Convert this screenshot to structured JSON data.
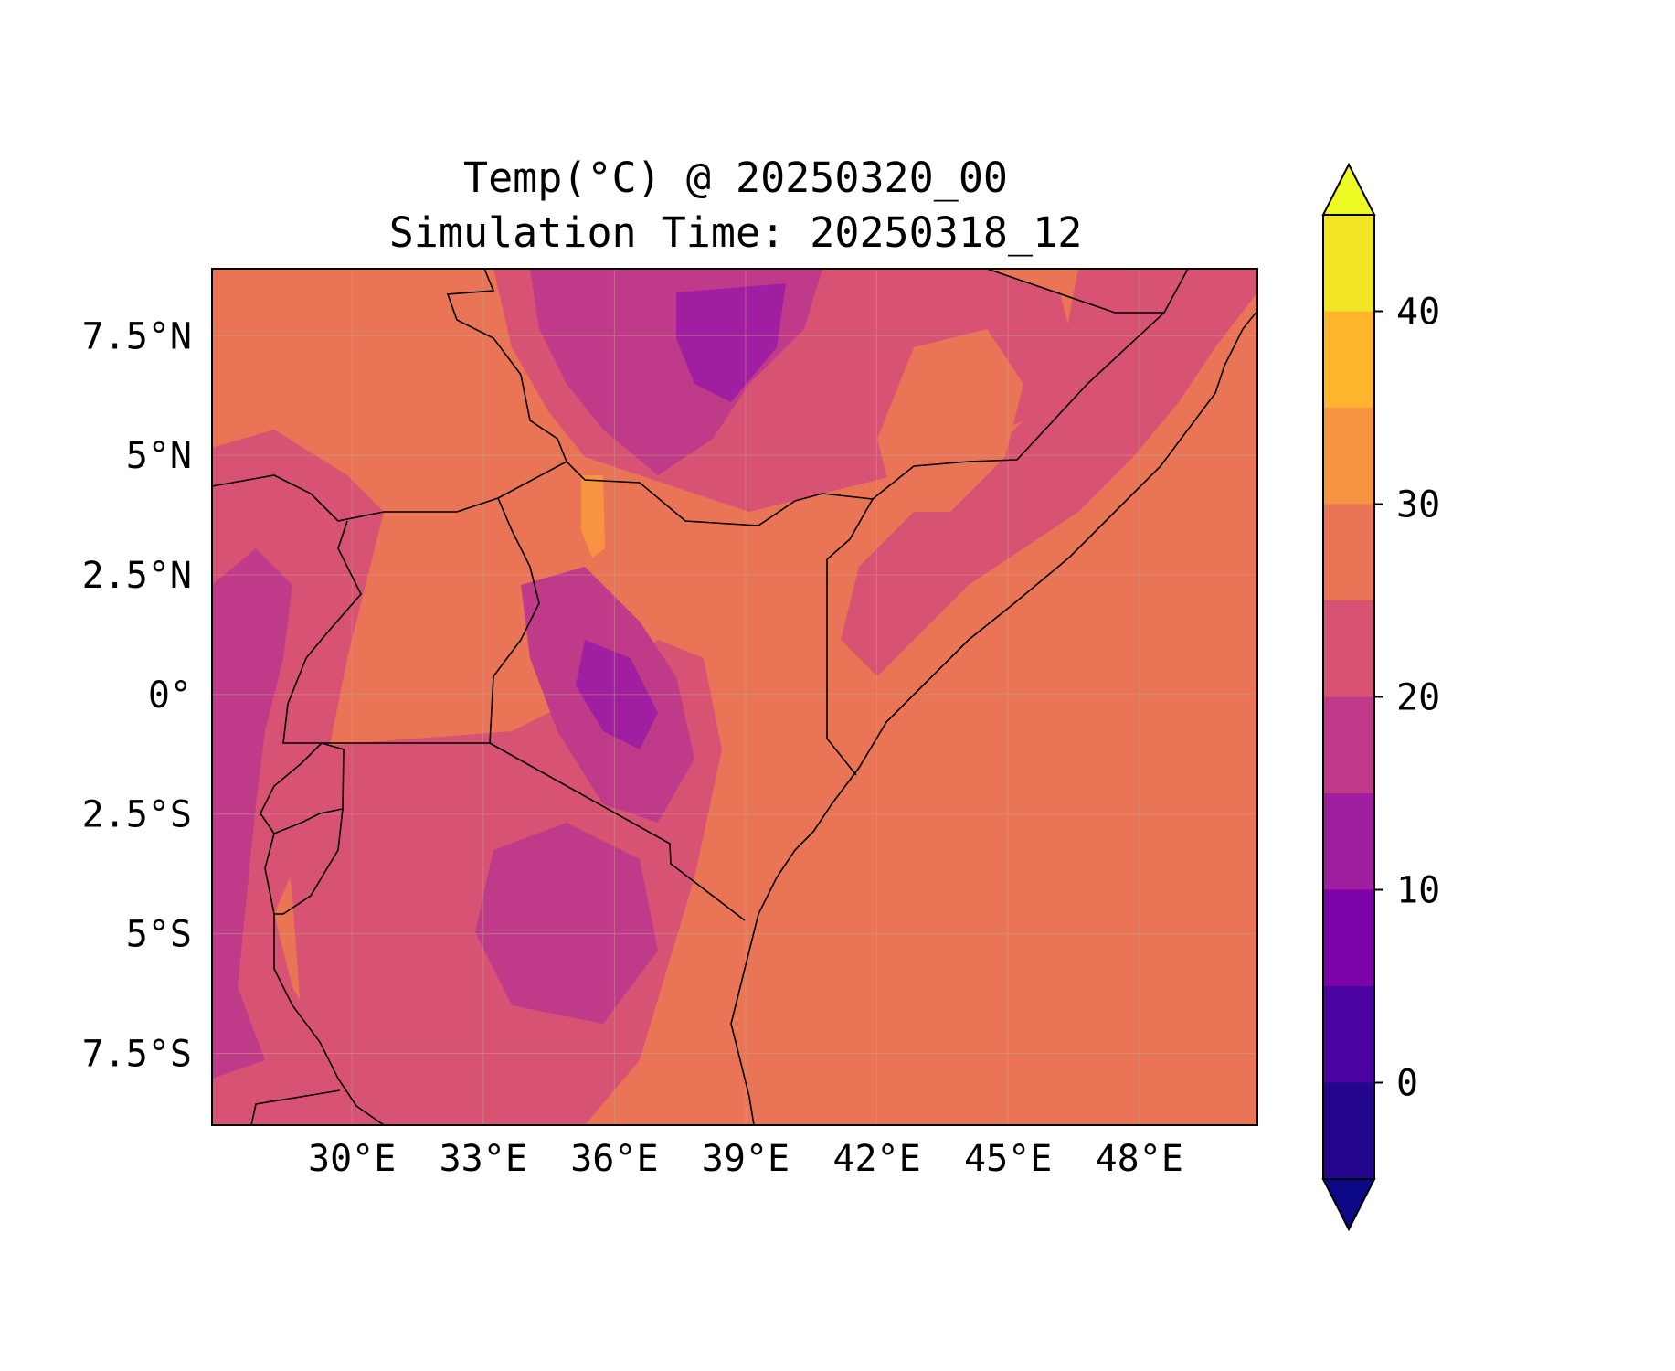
{
  "title": {
    "line1": "Temp(°C) @ 20250320_00",
    "line2": "Simulation Time: 20250318_12"
  },
  "map": {
    "lon_range": [
      26.8,
      50.7
    ],
    "lat_range": [
      -9.0,
      8.9
    ],
    "lon_ticks": [
      "30°E",
      "33°E",
      "36°E",
      "39°E",
      "42°E",
      "45°E",
      "48°E"
    ],
    "lat_ticks": [
      "7.5°N",
      "5°N",
      "2.5°N",
      "0°",
      "2.5°S",
      "5°S",
      "7.5°S"
    ],
    "background_color": "#e97456",
    "grid": true
  },
  "colorbar": {
    "ticks": [
      "0",
      "10",
      "20",
      "30",
      "40"
    ],
    "levels": [
      -5,
      0,
      5,
      10,
      15,
      20,
      25,
      30,
      35,
      40,
      45
    ],
    "extend": "both",
    "colors": [
      "#1d068e",
      "#0d0887",
      "#4c02a1",
      "#7e03a8",
      "#a92395",
      "#cc4778",
      "#e56b5d",
      "#f89441",
      "#fdc328",
      "#f0f921"
    ],
    "band_colors": [
      "#25068e",
      "#4b03a1",
      "#7d03a8",
      "#a01fa0",
      "#c03a8a",
      "#d85274",
      "#e97456",
      "#f89441",
      "#fdb52e",
      "#f1e526"
    ]
  }
}
